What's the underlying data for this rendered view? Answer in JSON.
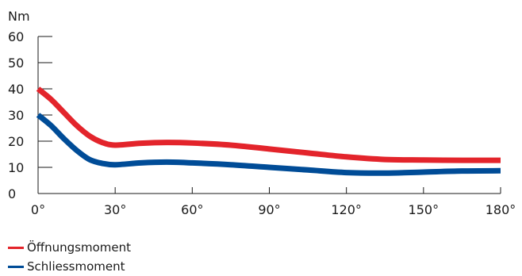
{
  "chart_data": {
    "type": "line",
    "title": "",
    "xlabel": "",
    "ylabel": "Nm",
    "xlim": [
      0,
      180
    ],
    "ylim": [
      0,
      60
    ],
    "x_ticks": [
      0,
      30,
      60,
      90,
      120,
      150,
      180
    ],
    "x_tick_labels": [
      "0°",
      "30°",
      "60°",
      "90°",
      "120°",
      "150°",
      "180°"
    ],
    "y_ticks": [
      0,
      10,
      20,
      30,
      40,
      50,
      60
    ],
    "y_tick_labels": [
      "0",
      "10",
      "20",
      "30",
      "40",
      "50",
      "60"
    ],
    "grid": false,
    "legend_position": "bottom-left",
    "series": [
      {
        "name": "Öffnungsmoment",
        "color": "#e3242b",
        "x": [
          0,
          5,
          10,
          15,
          20,
          25,
          30,
          40,
          50,
          60,
          75,
          90,
          105,
          120,
          135,
          150,
          165,
          180
        ],
        "values": [
          40,
          36,
          31,
          26,
          22,
          19.5,
          18.5,
          19.2,
          19.5,
          19.3,
          18.5,
          17,
          15.5,
          14,
          13,
          12.8,
          12.7,
          12.7
        ]
      },
      {
        "name": "Schliessmoment",
        "color": "#004c97",
        "x": [
          0,
          5,
          10,
          15,
          20,
          25,
          30,
          40,
          50,
          60,
          75,
          90,
          105,
          120,
          135,
          150,
          165,
          180
        ],
        "values": [
          30,
          26,
          21,
          16.5,
          13,
          11.5,
          11,
          11.7,
          12,
          11.7,
          11,
          10,
          9,
          8,
          7.8,
          8.2,
          8.6,
          8.7
        ]
      }
    ]
  }
}
